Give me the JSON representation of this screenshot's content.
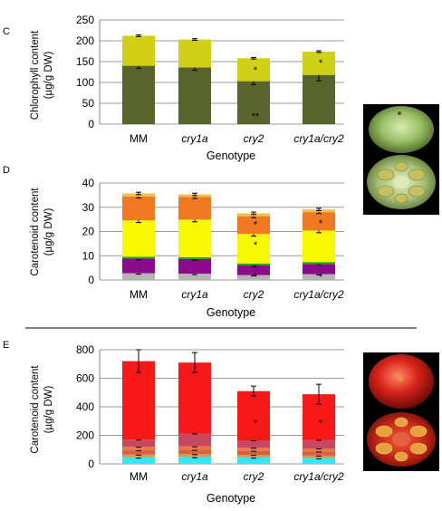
{
  "panels": [
    {
      "letter": "C",
      "ylabel_line1": "Chlorophyll content",
      "ylabel_line2": "(µg/g DW)",
      "xlabel": "Genotype",
      "categories": [
        "MM",
        "cry1a",
        "cry2",
        "cry1a/cry2"
      ],
      "italic_categories": [
        false,
        true,
        true,
        true
      ],
      "ylim": [
        0,
        250
      ],
      "yticks": [
        0,
        50,
        100,
        150,
        200,
        250
      ],
      "gridlines": true,
      "series": [
        {
          "color": "#58642c",
          "values": [
            140,
            136,
            103,
            118
          ],
          "errors": [
            6,
            7,
            8,
            14
          ]
        },
        {
          "color": "#d0d016",
          "values": [
            72,
            67,
            55,
            56
          ],
          "errors": [
            2,
            2,
            2,
            2
          ]
        }
      ],
      "annotations": [
        {
          "category": 2,
          "value": 20,
          "text": "**"
        },
        {
          "category": 2,
          "value": 130,
          "text": "*"
        },
        {
          "category": 3,
          "value": 148,
          "text": "*"
        }
      ]
    },
    {
      "letter": "D",
      "ylabel_line1": "Carotenoid content",
      "ylabel_line2": "(µg/g DW)",
      "xlabel": "Genotype",
      "categories": [
        "MM",
        "cry1a",
        "cry2",
        "cry1a/cry2"
      ],
      "italic_categories": [
        false,
        true,
        true,
        true
      ],
      "ylim": [
        0,
        40
      ],
      "yticks": [
        0,
        10,
        20,
        30,
        40
      ],
      "gridlines": true,
      "series": [
        {
          "color": "#b4b4b4",
          "values": [
            2.8,
            2.6,
            2.0,
            2.4
          ],
          "errors": [
            0.4,
            0.4,
            0.3,
            0.3
          ]
        },
        {
          "color": "#8c0a8c",
          "values": [
            6.0,
            6.0,
            4.0,
            4.2
          ],
          "errors": [
            0.5,
            0.5,
            0.4,
            0.4
          ]
        },
        {
          "color": "#28a028",
          "values": [
            0.8,
            0.8,
            0.8,
            0.8
          ],
          "errors": [
            0,
            0,
            0,
            0
          ]
        },
        {
          "color": "#f8f800",
          "values": [
            15.0,
            15.5,
            12.2,
            13.0
          ],
          "errors": [
            0.9,
            0.9,
            0.9,
            0.9
          ]
        },
        {
          "color": "#f07820",
          "values": [
            9.8,
            9.3,
            7.3,
            7.6
          ],
          "errors": [
            0.6,
            0.6,
            0.6,
            0.6
          ]
        },
        {
          "color": "#f4c04a",
          "values": [
            1.3,
            1.1,
            1.2,
            1.1
          ],
          "errors": [
            0.5,
            0.5,
            0.5,
            0.5
          ]
        }
      ],
      "annotations": [
        {
          "category": 2,
          "value": 1.5,
          "text": "*"
        },
        {
          "category": 2,
          "value": 5.0,
          "text": "*"
        },
        {
          "category": 2,
          "value": 14.5,
          "text": "*"
        },
        {
          "category": 2,
          "value": 23.0,
          "text": "*"
        },
        {
          "category": 3,
          "value": 1.5,
          "text": "*"
        },
        {
          "category": 3,
          "value": 23.5,
          "text": "*"
        }
      ]
    },
    {
      "letter": "E",
      "ylabel_line1": "Carotenoid content",
      "ylabel_line2": "(µg/g DW)",
      "xlabel": "Genotype",
      "categories": [
        "MM",
        "cry1a",
        "cry2",
        "cry1a/cry2"
      ],
      "italic_categories": [
        false,
        true,
        true,
        true
      ],
      "ylim": [
        0,
        800
      ],
      "yticks": [
        0,
        200,
        400,
        600,
        800
      ],
      "gridlines": true,
      "series": [
        {
          "color": "#30e8ff",
          "values": [
            45,
            48,
            45,
            40
          ],
          "errors": [
            5,
            5,
            5,
            5
          ]
        },
        {
          "color": "#c8a058",
          "values": [
            20,
            20,
            18,
            18
          ],
          "errors": [
            3,
            3,
            3,
            3
          ]
        },
        {
          "color": "#d86040",
          "values": [
            30,
            30,
            28,
            28
          ],
          "errors": [
            3,
            3,
            3,
            3
          ]
        },
        {
          "color": "#e87848",
          "values": [
            25,
            25,
            22,
            22
          ],
          "errors": [
            3,
            3,
            3,
            3
          ]
        },
        {
          "color": "#c84860",
          "values": [
            50,
            90,
            52,
            60
          ],
          "errors": [
            3,
            3,
            3,
            3
          ]
        },
        {
          "color": "#f81818",
          "values": [
            550,
            497,
            345,
            320
          ],
          "errors": [
            80,
            70,
            35,
            70
          ]
        }
      ],
      "annotations": [
        {
          "category": 2,
          "value": 290,
          "text": "*"
        },
        {
          "category": 3,
          "value": 290,
          "text": "*"
        }
      ]
    }
  ]
}
